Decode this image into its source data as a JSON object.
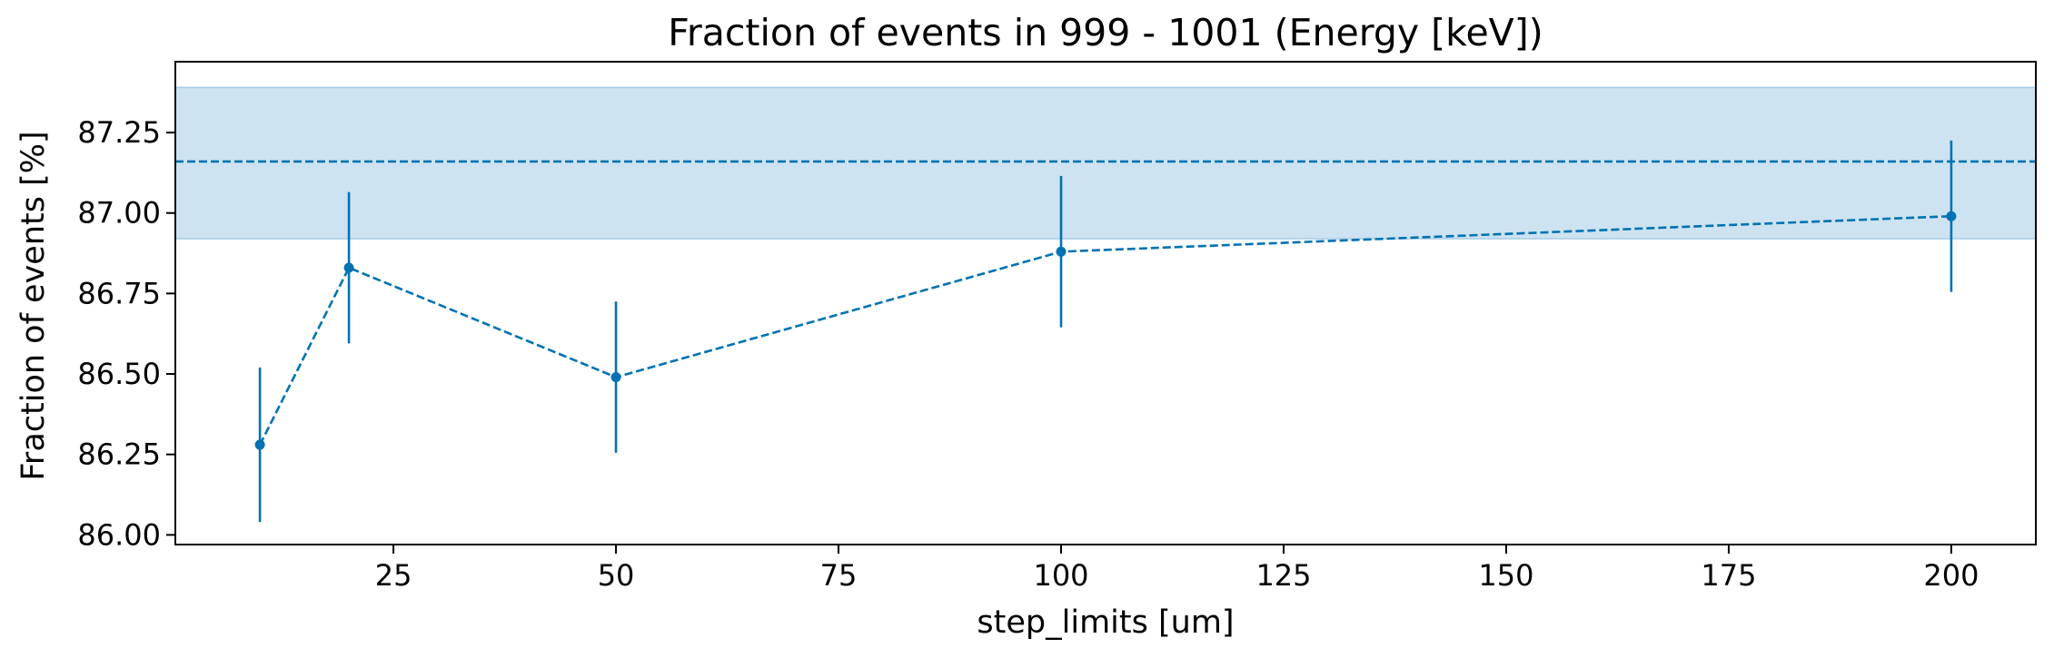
{
  "chart_data": {
    "type": "line",
    "title": "Fraction of events in 999 - 1001 (Energy [keV])",
    "xlabel": "step_limits [um]",
    "ylabel": "Fraction of events [%]",
    "xlim": [
      0.5,
      209.5
    ],
    "ylim": [
      85.97,
      87.47
    ],
    "xticks": [
      25,
      50,
      75,
      100,
      125,
      150,
      175,
      200
    ],
    "xtick_labels": [
      "25",
      "50",
      "75",
      "100",
      "125",
      "150",
      "175",
      "200"
    ],
    "yticks": [
      86.0,
      86.25,
      86.5,
      86.75,
      87.0,
      87.25
    ],
    "ytick_labels": [
      "86.00",
      "86.25",
      "86.50",
      "86.75",
      "87.00",
      "87.25"
    ],
    "grid": false,
    "series": [
      {
        "x": [
          10,
          20,
          50,
          100,
          200
        ],
        "y": [
          86.28,
          86.83,
          86.49,
          86.88,
          86.99
        ],
        "yerr": [
          0.24,
          0.235,
          0.235,
          0.235,
          0.235
        ],
        "line_style": "dashed",
        "marker": "circle"
      }
    ],
    "reference_line": {
      "y": 87.16,
      "line_style": "dashed"
    },
    "reference_band": {
      "y_low": 86.92,
      "y_high": 87.39
    },
    "colors": {
      "series": "#0072b2",
      "band_fill": "#cde3f1",
      "band_edge": "#a9cde6"
    }
  }
}
